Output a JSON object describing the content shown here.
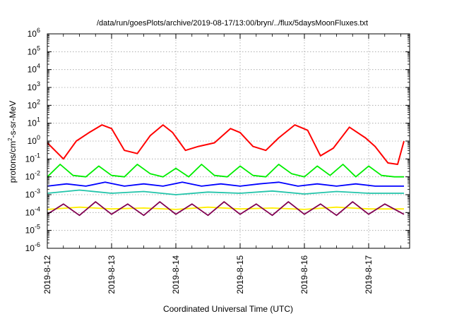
{
  "chart_data": {
    "type": "line",
    "title": "/data/run/goesPlots/archive/2019-08-17/13:00/bryn/../flux/5daysMoonFluxes.txt",
    "xlabel": "Coordinated Universal Time (UTC)",
    "ylabel": {
      "base": "protons/cm",
      "sup": "2",
      "rest": "-s-sr-MeV"
    },
    "scale_y": "log",
    "ylim": [
      1e-06,
      1000000.0
    ],
    "xlim": [
      "2019-08-12 00:00",
      "2019-08-17 13:00"
    ],
    "grid": true,
    "x_ticks": [
      "2019-8-12",
      "2019-8-13",
      "2019-8-14",
      "2019-8-15",
      "2019-8-16",
      "2019-8-17"
    ],
    "y_ticks": [
      {
        "base": "10",
        "exp": "6"
      },
      {
        "base": "10",
        "exp": "5"
      },
      {
        "base": "10",
        "exp": "4"
      },
      {
        "base": "10",
        "exp": "3"
      },
      {
        "base": "10",
        "exp": "2"
      },
      {
        "base": "10",
        "exp": "1"
      },
      {
        "base": "10",
        "exp": "0"
      },
      {
        "base": "10",
        "exp": "-1"
      },
      {
        "base": "10",
        "exp": "-2"
      },
      {
        "base": "10",
        "exp": "-3"
      },
      {
        "base": "10",
        "exp": "-4"
      },
      {
        "base": "10",
        "exp": "-5"
      },
      {
        "base": "10",
        "exp": "-6"
      }
    ],
    "series": [
      {
        "color": "#ff0000",
        "days": [
          0.0,
          0.25,
          0.45,
          0.65,
          0.85,
          1.0,
          1.2,
          1.4,
          1.6,
          1.8,
          1.95,
          2.15,
          2.35,
          2.6,
          2.85,
          3.0,
          3.2,
          3.4,
          3.6,
          3.85,
          4.05,
          4.25,
          4.45,
          4.7,
          4.95,
          5.1,
          5.3,
          5.45,
          5.55
        ],
        "values": [
          0.8,
          0.1,
          1.0,
          3.0,
          8.0,
          5.0,
          0.3,
          0.2,
          2.0,
          8.0,
          3.0,
          0.3,
          0.5,
          0.8,
          5.0,
          3.0,
          0.5,
          0.3,
          1.5,
          8.0,
          4.0,
          0.15,
          0.4,
          6.0,
          1.5,
          0.5,
          0.06,
          0.05,
          1.0
        ]
      },
      {
        "color": "#00ee00",
        "days": [
          0.0,
          0.2,
          0.4,
          0.6,
          0.8,
          1.0,
          1.2,
          1.4,
          1.6,
          1.8,
          2.0,
          2.2,
          2.4,
          2.6,
          2.8,
          3.0,
          3.2,
          3.4,
          3.6,
          3.8,
          4.0,
          4.2,
          4.4,
          4.6,
          4.8,
          5.0,
          5.2,
          5.4,
          5.55
        ],
        "values": [
          0.01,
          0.05,
          0.012,
          0.01,
          0.04,
          0.012,
          0.01,
          0.05,
          0.015,
          0.01,
          0.03,
          0.01,
          0.05,
          0.012,
          0.01,
          0.04,
          0.012,
          0.01,
          0.05,
          0.015,
          0.01,
          0.04,
          0.012,
          0.05,
          0.01,
          0.04,
          0.012,
          0.01,
          0.01
        ]
      },
      {
        "color": "#0000ff",
        "days": [
          0.0,
          0.3,
          0.6,
          0.9,
          1.2,
          1.5,
          1.8,
          2.1,
          2.4,
          2.7,
          3.0,
          3.3,
          3.6,
          3.9,
          4.2,
          4.5,
          4.8,
          5.1,
          5.4,
          5.55
        ],
        "values": [
          0.003,
          0.004,
          0.003,
          0.005,
          0.003,
          0.004,
          0.003,
          0.005,
          0.003,
          0.004,
          0.003,
          0.004,
          0.005,
          0.003,
          0.004,
          0.003,
          0.004,
          0.003,
          0.003,
          0.003
        ]
      },
      {
        "color": "#22c4aa",
        "days": [
          0.0,
          0.5,
          1.0,
          1.5,
          2.0,
          2.5,
          3.0,
          3.5,
          4.0,
          4.5,
          5.0,
          5.55
        ],
        "values": [
          0.0012,
          0.0018,
          0.0012,
          0.0015,
          0.001,
          0.0014,
          0.0012,
          0.0016,
          0.0011,
          0.0015,
          0.0012,
          0.0012
        ]
      },
      {
        "color": "#ffee00",
        "days": [
          0.0,
          0.5,
          1.0,
          1.5,
          2.0,
          2.5,
          3.0,
          3.5,
          4.0,
          4.5,
          5.0,
          5.55
        ],
        "values": [
          0.00015,
          0.0002,
          0.00016,
          0.00018,
          0.00015,
          0.0002,
          0.00016,
          0.00018,
          0.00015,
          0.0002,
          0.00016,
          0.00016
        ]
      },
      {
        "color": "#800050",
        "days": [
          0.0,
          0.25,
          0.5,
          0.75,
          1.0,
          1.25,
          1.5,
          1.75,
          2.0,
          2.25,
          2.5,
          2.75,
          3.0,
          3.25,
          3.5,
          3.75,
          4.0,
          4.25,
          4.5,
          4.75,
          5.0,
          5.25,
          5.55
        ],
        "values": [
          8e-05,
          0.0003,
          7e-05,
          0.0004,
          8e-05,
          0.0003,
          7e-05,
          0.0004,
          8e-05,
          0.0003,
          7e-05,
          0.0004,
          8e-05,
          0.0003,
          7e-05,
          0.0004,
          8e-05,
          0.0003,
          7e-05,
          0.0004,
          8e-05,
          0.0003,
          8e-05
        ]
      }
    ]
  }
}
